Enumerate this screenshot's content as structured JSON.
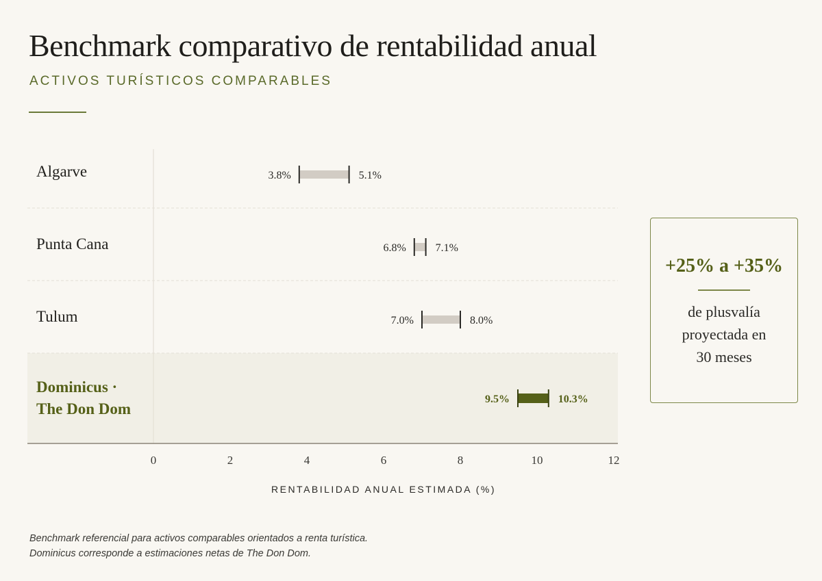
{
  "header": {
    "title": "Benchmark comparativo de rentabilidad anual",
    "subtitle": "ACTIVOS TURÍSTICOS COMPARABLES"
  },
  "chart_data": {
    "type": "range-bar",
    "categories": [
      "Algarve",
      "Punta Cana",
      "Tulum",
      "Dominicus · The Don Dom"
    ],
    "ranges": [
      {
        "category": "Algarve",
        "low": 3.8,
        "high": 5.1,
        "low_label": "3.8%",
        "high_label": "5.1%",
        "highlight": false
      },
      {
        "category": "Punta Cana",
        "low": 6.8,
        "high": 7.1,
        "low_label": "6.8%",
        "high_label": "7.1%",
        "highlight": false
      },
      {
        "category": "Tulum",
        "low": 7.0,
        "high": 8.0,
        "low_label": "7.0%",
        "high_label": "8.0%",
        "highlight": false
      },
      {
        "category": "Dominicus · The Don Dom",
        "low": 9.5,
        "high": 10.3,
        "low_label": "9.5%",
        "high_label": "10.3%",
        "highlight": true
      }
    ],
    "xlabel": "RENTABILIDAD ANUAL ESTIMADA (%)",
    "xticks": [
      0,
      2,
      4,
      6,
      8,
      10,
      12
    ],
    "xlim": [
      0,
      12
    ],
    "colors": {
      "default_bar": "#d2ccc4",
      "highlight_bar": "#556018",
      "highlight_row_bg": "#f1efe6",
      "grid": "#e4dfd6"
    }
  },
  "callout": {
    "value": "+25% a +35%",
    "text_lines": [
      "de plusvalía",
      "proyectada en",
      "30 meses"
    ]
  },
  "footnote": {
    "lines": [
      "Benchmark referencial para activos comparables orientados a renta turística.",
      "Dominicus corresponde a estimaciones netas de The Don Dom."
    ]
  }
}
